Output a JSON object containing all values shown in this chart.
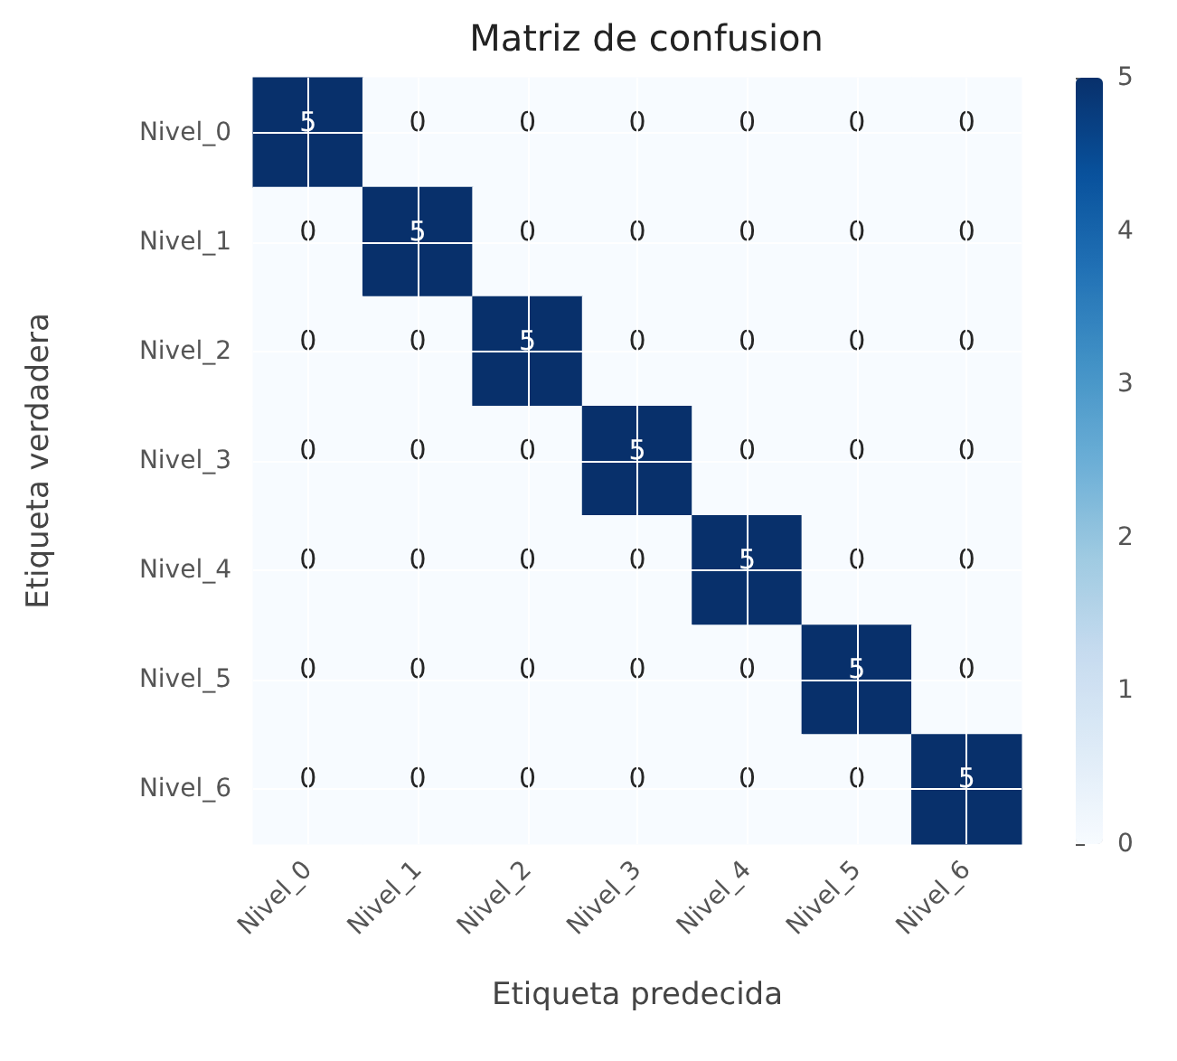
{
  "chart_data": {
    "type": "heatmap",
    "title": "Matriz de confusion",
    "xlabel": "Etiqueta predecida",
    "ylabel": "Etiqueta verdadera",
    "categories": [
      "Nivel_0",
      "Nivel_1",
      "Nivel_2",
      "Nivel_3",
      "Nivel_4",
      "Nivel_5",
      "Nivel_6"
    ],
    "y_categories": [
      "Nivel_0",
      "Nivel_1",
      "Nivel_2",
      "Nivel_3",
      "Nivel_4",
      "Nivel_5",
      "Nivel_6"
    ],
    "cells": [
      [
        5,
        0,
        0,
        0,
        0,
        0,
        0
      ],
      [
        0,
        5,
        0,
        0,
        0,
        0,
        0
      ],
      [
        0,
        0,
        5,
        0,
        0,
        0,
        0
      ],
      [
        0,
        0,
        0,
        5,
        0,
        0,
        0
      ],
      [
        0,
        0,
        0,
        0,
        5,
        0,
        0
      ],
      [
        0,
        0,
        0,
        0,
        0,
        5,
        0
      ],
      [
        0,
        0,
        0,
        0,
        0,
        0,
        5
      ]
    ],
    "clim": [
      0,
      5
    ],
    "cticks": [
      0,
      1,
      2,
      3,
      4,
      5
    ],
    "grid": true,
    "data_labels": true
  }
}
